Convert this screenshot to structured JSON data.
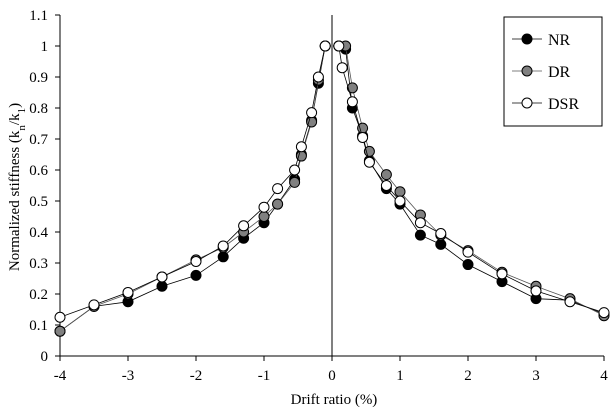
{
  "chart_data": {
    "type": "scatter",
    "xlabel": "Drift ratio (%)",
    "ylabel": "Normalized stiffness (k",
    "ylabel_sub1": "n",
    "ylabel_mid": "/k",
    "ylabel_sub2": "1",
    "ylabel_end": ")",
    "xlim": [
      -4,
      4
    ],
    "ylim": [
      0,
      1.1
    ],
    "x_ticks": [
      -4,
      -3,
      -2,
      -1,
      0,
      1,
      2,
      3,
      4
    ],
    "x_tick_labels": [
      "-4",
      "-3",
      "-2",
      "-1",
      "0",
      "1",
      "2",
      "3",
      "4"
    ],
    "y_ticks": [
      0,
      0.1,
      0.2,
      0.3,
      0.4,
      0.5,
      0.6,
      0.7,
      0.8,
      0.9,
      1,
      1.1
    ],
    "y_tick_labels": [
      "0",
      "0.1",
      "0.2",
      "0.3",
      "0.4",
      "0.5",
      "0.6",
      "0.7",
      "0.8",
      "0.9",
      "1",
      "1.1"
    ],
    "grid": false,
    "legend_position": "top-right",
    "series": [
      {
        "name": "NR",
        "color": "#000000",
        "marker_fill": "#000000",
        "negative": [
          [
            -0.1,
            1.0
          ],
          [
            -0.2,
            0.88
          ],
          [
            -0.3,
            0.76
          ],
          [
            -0.45,
            0.65
          ],
          [
            -0.55,
            0.57
          ],
          [
            -0.8,
            0.49
          ],
          [
            -1.0,
            0.43
          ],
          [
            -1.3,
            0.38
          ],
          [
            -1.6,
            0.32
          ],
          [
            -2.0,
            0.26
          ],
          [
            -2.5,
            0.225
          ],
          [
            -3.0,
            0.175
          ],
          [
            -3.5,
            0.16
          ],
          [
            -4.0,
            0.08
          ]
        ],
        "positive": [
          [
            0.1,
            1.0
          ],
          [
            0.2,
            0.99
          ],
          [
            0.3,
            0.8
          ],
          [
            0.45,
            0.71
          ],
          [
            0.55,
            0.63
          ],
          [
            0.8,
            0.54
          ],
          [
            1.0,
            0.49
          ],
          [
            1.3,
            0.39
          ],
          [
            1.6,
            0.36
          ],
          [
            2.0,
            0.295
          ],
          [
            2.5,
            0.24
          ],
          [
            3.0,
            0.185
          ],
          [
            3.5,
            0.18
          ],
          [
            4.0,
            0.135
          ]
        ]
      },
      {
        "name": "DR",
        "color": "#555555",
        "marker_fill": "#808080",
        "negative": [
          [
            -0.1,
            1.0
          ],
          [
            -0.2,
            0.89
          ],
          [
            -0.3,
            0.755
          ],
          [
            -0.45,
            0.645
          ],
          [
            -0.55,
            0.56
          ],
          [
            -0.8,
            0.49
          ],
          [
            -1.0,
            0.45
          ],
          [
            -1.3,
            0.4
          ],
          [
            -1.6,
            0.35
          ],
          [
            -2.0,
            0.31
          ],
          [
            -2.5,
            0.255
          ],
          [
            -3.0,
            0.2
          ],
          [
            -3.5,
            0.16
          ],
          [
            -4.0,
            0.08
          ]
        ],
        "positive": [
          [
            0.1,
            1.0
          ],
          [
            0.2,
            1.0
          ],
          [
            0.3,
            0.865
          ],
          [
            0.45,
            0.735
          ],
          [
            0.55,
            0.66
          ],
          [
            0.8,
            0.585
          ],
          [
            1.0,
            0.53
          ],
          [
            1.3,
            0.455
          ],
          [
            1.6,
            0.39
          ],
          [
            2.0,
            0.34
          ],
          [
            2.5,
            0.27
          ],
          [
            3.0,
            0.225
          ],
          [
            3.5,
            0.185
          ],
          [
            4.0,
            0.13
          ]
        ]
      },
      {
        "name": "DSR",
        "color": "#000000",
        "marker_fill": "#ffffff",
        "negative": [
          [
            -0.1,
            1.0
          ],
          [
            -0.2,
            0.9
          ],
          [
            -0.3,
            0.785
          ],
          [
            -0.45,
            0.675
          ],
          [
            -0.55,
            0.6
          ],
          [
            -0.8,
            0.54
          ],
          [
            -1.0,
            0.48
          ],
          [
            -1.3,
            0.42
          ],
          [
            -1.6,
            0.355
          ],
          [
            -2.0,
            0.305
          ],
          [
            -2.5,
            0.255
          ],
          [
            -3.0,
            0.205
          ],
          [
            -3.5,
            0.165
          ],
          [
            -4.0,
            0.125
          ]
        ],
        "positive": [
          [
            0.1,
            1.0
          ],
          [
            0.15,
            0.93
          ],
          [
            0.3,
            0.82
          ],
          [
            0.45,
            0.705
          ],
          [
            0.55,
            0.625
          ],
          [
            0.8,
            0.55
          ],
          [
            1.0,
            0.5
          ],
          [
            1.3,
            0.43
          ],
          [
            1.6,
            0.395
          ],
          [
            2.0,
            0.335
          ],
          [
            2.5,
            0.265
          ],
          [
            3.0,
            0.21
          ],
          [
            3.5,
            0.175
          ],
          [
            4.0,
            0.14
          ]
        ]
      }
    ]
  }
}
